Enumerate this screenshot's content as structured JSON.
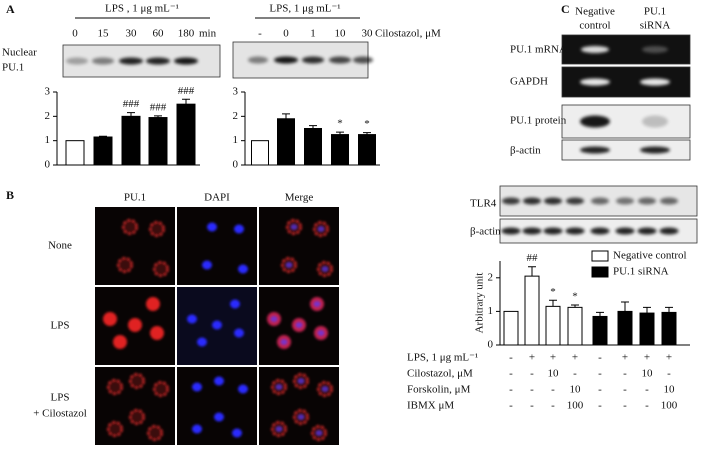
{
  "figure": {
    "panels": [
      "A",
      "B",
      "C"
    ],
    "blot_label_a": [
      "Nuclear",
      "PU.1"
    ],
    "panel_b": {
      "columns": [
        "PU.1",
        "DAPI",
        "Merge"
      ],
      "rows": [
        [
          "None"
        ],
        [
          "LPS"
        ],
        [
          "LPS",
          "+ Cilostazol"
        ]
      ]
    },
    "panel_c": {
      "columns": [
        [
          "Negative",
          "control"
        ],
        [
          "PU.1",
          "siRNA"
        ]
      ],
      "blots": [
        "PU.1 mRNA",
        "GAPDH",
        "PU.1 protein",
        "β-actin"
      ],
      "blots2": [
        "TLR4",
        "β-actin"
      ],
      "table": {
        "rows": [
          {
            "label": "LPS, 1 μg mL⁻¹",
            "cells": [
              "-",
              "+",
              "+",
              "+",
              "-",
              "+",
              "+",
              "+"
            ]
          },
          {
            "label": "Cilostazol, μM",
            "cells": [
              "-",
              "-",
              "10",
              "-",
              "-",
              "-",
              "10",
              "-"
            ]
          },
          {
            "label": "Forskolin, μM",
            "cells": [
              "-",
              "-",
              "-",
              "10",
              "-",
              "-",
              "-",
              "10"
            ]
          },
          {
            "label": "IBMX μM",
            "cells": [
              "-",
              "-",
              "-",
              "100",
              "-",
              "-",
              "-",
              "100"
            ]
          }
        ]
      }
    }
  },
  "chart_data": [
    {
      "type": "bar",
      "title": "LPS , 1 μg mL⁻¹",
      "x_label": "min",
      "categories": [
        "0",
        "15",
        "30",
        "60",
        "180"
      ],
      "series": [
        {
          "values": [
            1,
            1.15,
            2.0,
            1.95,
            2.5
          ],
          "errors": [
            null,
            0.03,
            0.15,
            0.07,
            0.2
          ],
          "colors": [
            "#ffffff",
            "#000000",
            "#000000",
            "#000000",
            "#000000"
          ]
        }
      ],
      "annotations": [
        null,
        null,
        "###",
        "###",
        "###"
      ],
      "ylim": [
        0,
        3
      ],
      "yticks": [
        0,
        1,
        2,
        3
      ]
    },
    {
      "type": "bar",
      "title": "LPS, 1 μg mL⁻¹",
      "x_label": "Cilostazol, μM",
      "categories": [
        "-",
        "0",
        "1",
        "10",
        "30"
      ],
      "series": [
        {
          "values": [
            1,
            1.9,
            1.5,
            1.25,
            1.25
          ],
          "errors": [
            null,
            0.2,
            0.12,
            0.1,
            0.08
          ],
          "colors": [
            "#ffffff",
            "#000000",
            "#000000",
            "#000000",
            "#000000"
          ]
        }
      ],
      "annotations": [
        null,
        null,
        null,
        "*",
        "*"
      ],
      "ylim": [
        0,
        3
      ],
      "yticks": [
        0,
        1,
        2,
        3
      ]
    },
    {
      "type": "bar",
      "y_label": "Arbitrary unit",
      "series": [
        {
          "name": "Negative control",
          "color": "#ffffff",
          "values": [
            1,
            2.05,
            1.15,
            1.12,
            null,
            null,
            null,
            null
          ],
          "errors": [
            null,
            0.28,
            0.18,
            0.07,
            null,
            null,
            null,
            null
          ]
        },
        {
          "name": "PU.1 siRNA",
          "color": "#000000",
          "values": [
            null,
            null,
            null,
            null,
            0.85,
            1.0,
            0.95,
            0.97
          ],
          "errors": [
            null,
            null,
            null,
            null,
            0.12,
            0.28,
            0.17,
            0.15
          ]
        }
      ],
      "annotations": [
        null,
        "##",
        "*",
        "*",
        null,
        null,
        null,
        null
      ],
      "ylim": [
        0,
        2.5
      ],
      "yticks": [
        0,
        1,
        2
      ]
    }
  ]
}
